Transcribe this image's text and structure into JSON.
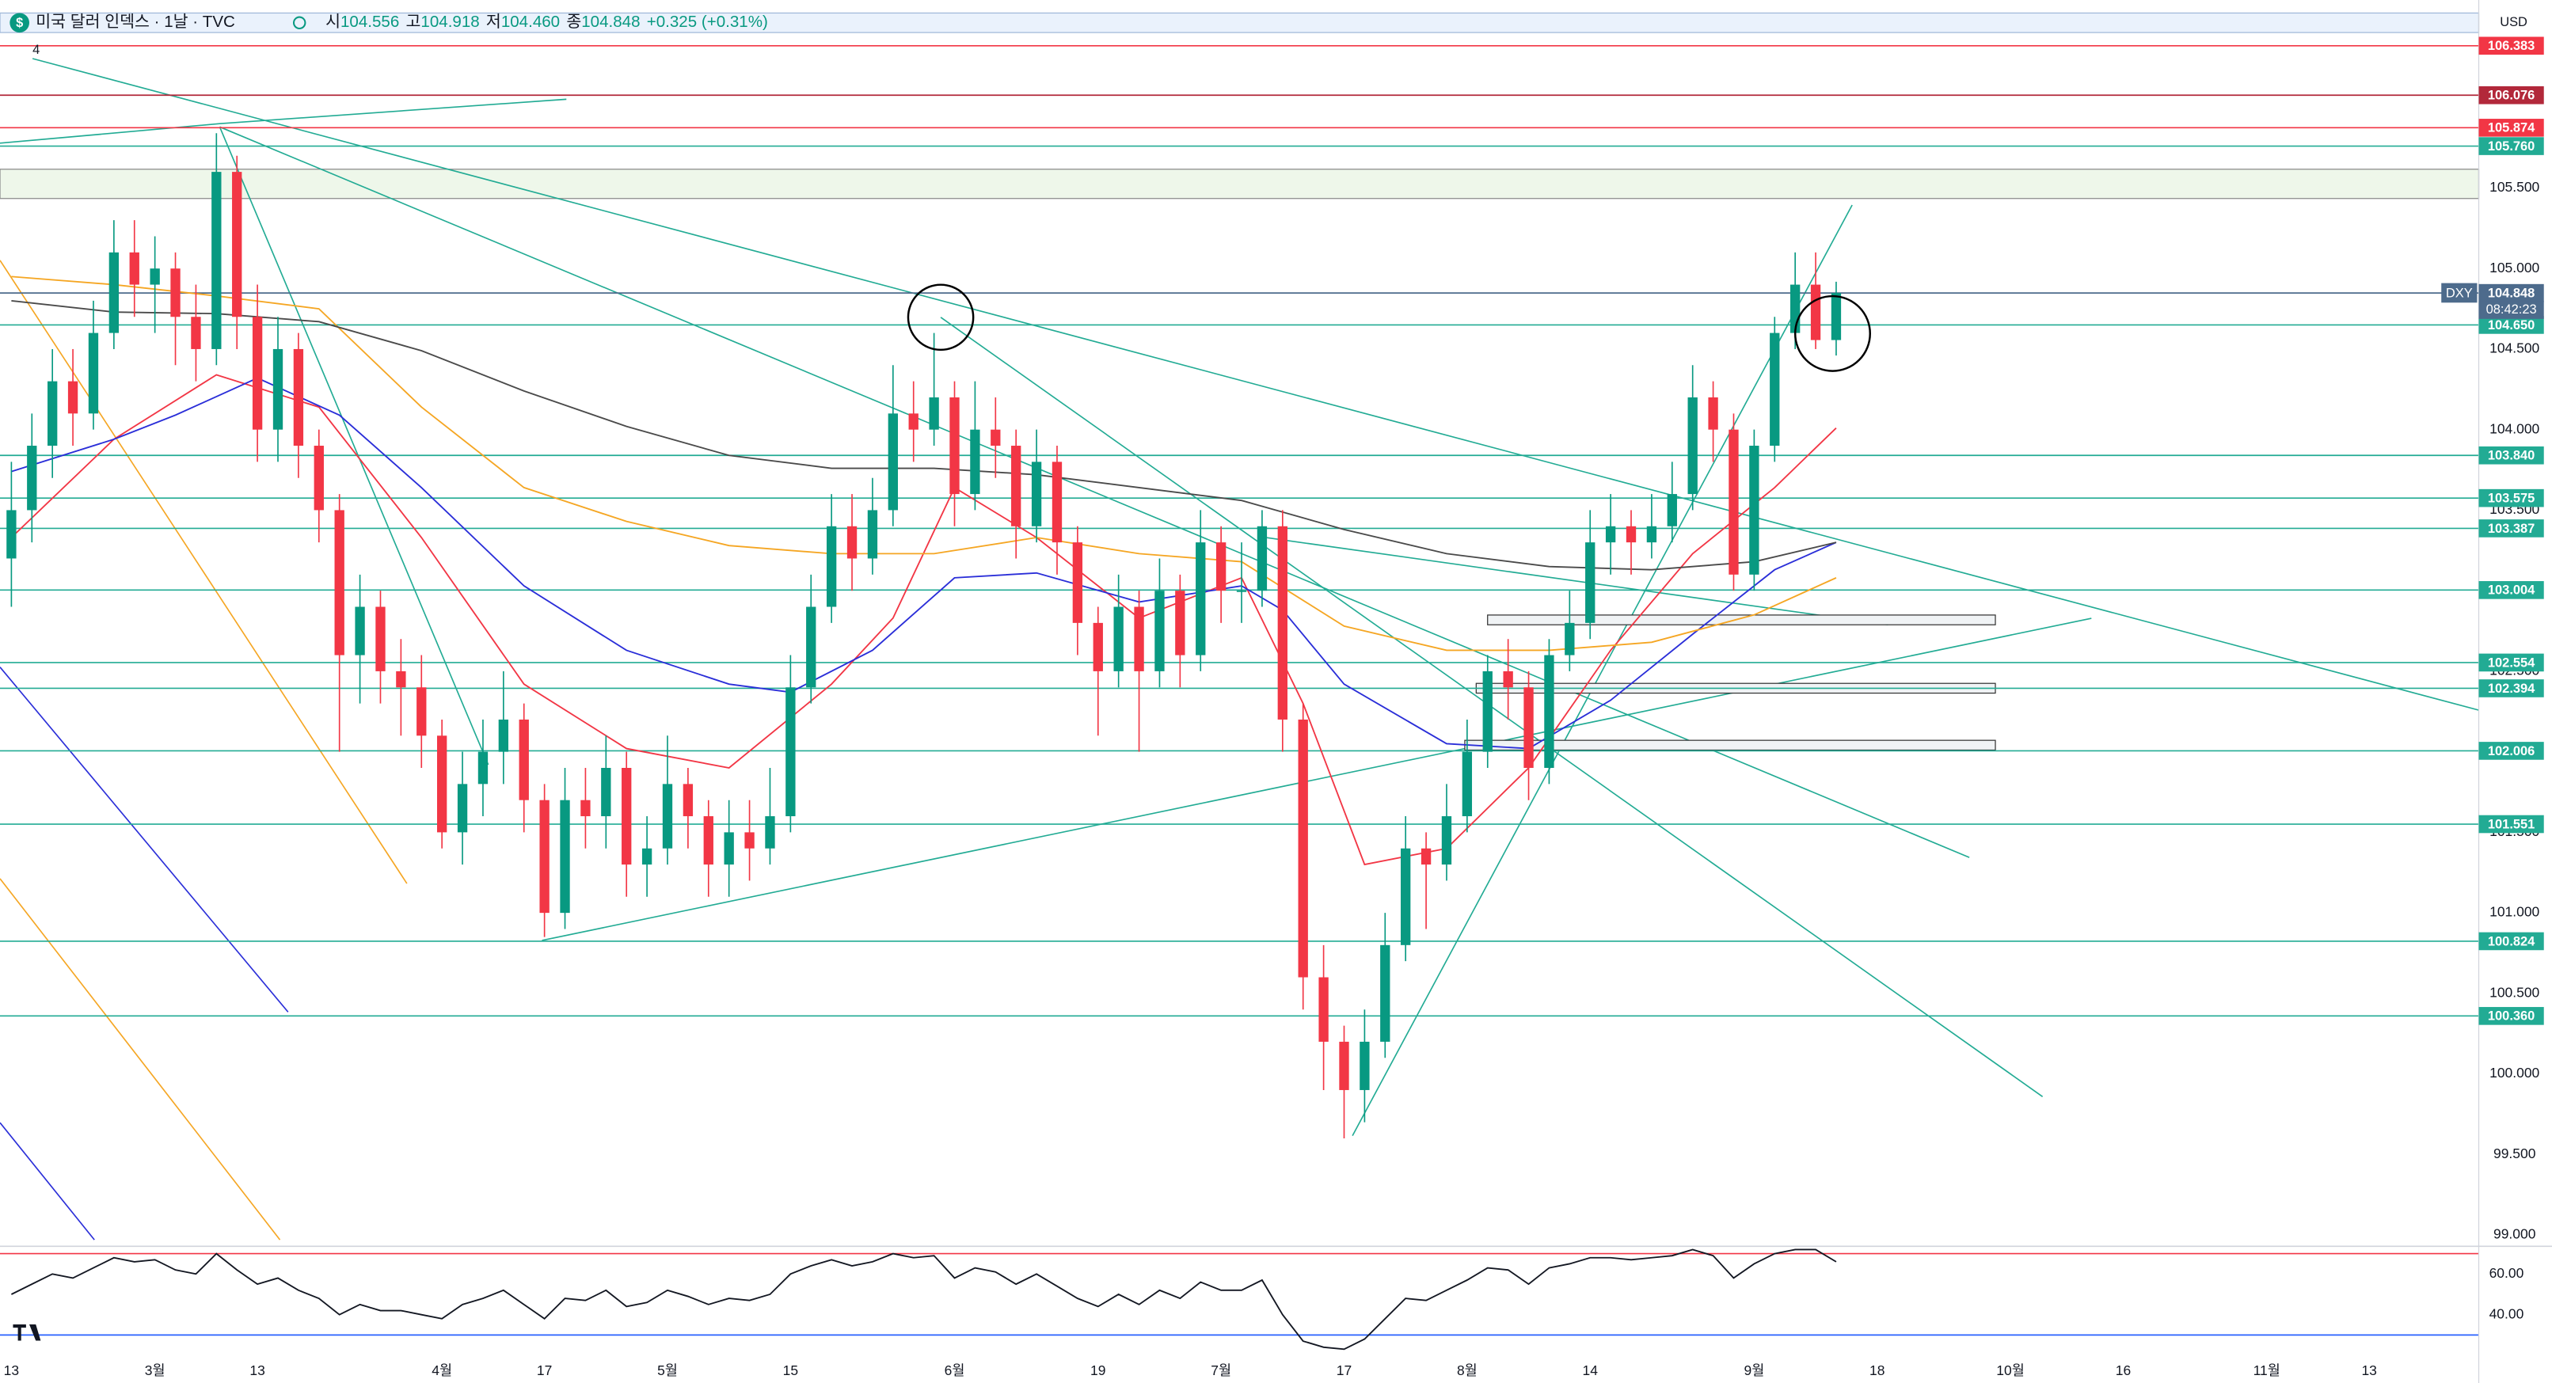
{
  "header": {
    "title": "미국 달러 인덱스 · 1날 · TVC",
    "ohlc": [
      {
        "label": "시",
        "value": "104.556"
      },
      {
        "label": "고",
        "value": "104.918"
      },
      {
        "label": "저",
        "value": "104.460"
      },
      {
        "label": "종",
        "value": "104.848"
      }
    ],
    "change": "+0.325 (+0.31%)",
    "indicator_count": "4",
    "currency": "USD",
    "symbol": "DXY",
    "countdown": "08:42:23"
  },
  "chart_data": [
    {
      "type": "candlestick",
      "up_color": "#089981",
      "down_color": "#f23645",
      "candles": [
        [
          103.2,
          103.8,
          102.9,
          103.5
        ],
        [
          103.5,
          104.1,
          103.3,
          103.9
        ],
        [
          103.9,
          104.5,
          103.7,
          104.3
        ],
        [
          104.3,
          104.5,
          103.9,
          104.1
        ],
        [
          104.1,
          104.8,
          104.0,
          104.6
        ],
        [
          104.6,
          105.3,
          104.5,
          105.1
        ],
        [
          105.1,
          105.3,
          104.7,
          104.9
        ],
        [
          104.9,
          105.2,
          104.6,
          105.0
        ],
        [
          105.0,
          105.1,
          104.4,
          104.7
        ],
        [
          104.7,
          104.9,
          104.3,
          104.5
        ],
        [
          104.5,
          105.84,
          104.4,
          105.6
        ],
        [
          105.6,
          105.7,
          104.5,
          104.7
        ],
        [
          104.7,
          104.9,
          103.8,
          104.0
        ],
        [
          104.0,
          104.7,
          103.8,
          104.5
        ],
        [
          104.5,
          104.6,
          103.7,
          103.9
        ],
        [
          103.9,
          104.0,
          103.3,
          103.5
        ],
        [
          103.5,
          103.6,
          102.0,
          102.6
        ],
        [
          102.6,
          103.1,
          102.3,
          102.9
        ],
        [
          102.9,
          103.0,
          102.3,
          102.5
        ],
        [
          102.5,
          102.7,
          102.1,
          102.4
        ],
        [
          102.4,
          102.6,
          101.9,
          102.1
        ],
        [
          102.1,
          102.2,
          101.4,
          101.5
        ],
        [
          101.5,
          102.0,
          101.3,
          101.8
        ],
        [
          101.8,
          102.2,
          101.6,
          102.0
        ],
        [
          102.0,
          102.5,
          101.8,
          102.2
        ],
        [
          102.2,
          102.3,
          101.5,
          101.7
        ],
        [
          101.7,
          101.8,
          100.85,
          101.0
        ],
        [
          101.0,
          101.9,
          100.9,
          101.7
        ],
        [
          101.7,
          101.9,
          101.4,
          101.6
        ],
        [
          101.6,
          102.1,
          101.4,
          101.9
        ],
        [
          101.9,
          102.0,
          101.1,
          101.3
        ],
        [
          101.3,
          101.6,
          101.1,
          101.4
        ],
        [
          101.4,
          102.1,
          101.3,
          101.8
        ],
        [
          101.8,
          101.9,
          101.4,
          101.6
        ],
        [
          101.6,
          101.7,
          101.1,
          101.3
        ],
        [
          101.3,
          101.7,
          101.1,
          101.5
        ],
        [
          101.5,
          101.7,
          101.2,
          101.4
        ],
        [
          101.4,
          101.9,
          101.3,
          101.6
        ],
        [
          101.6,
          102.6,
          101.5,
          102.4
        ],
        [
          102.4,
          103.1,
          102.3,
          102.9
        ],
        [
          102.9,
          103.6,
          102.8,
          103.4
        ],
        [
          103.4,
          103.6,
          103.0,
          103.2
        ],
        [
          103.2,
          103.7,
          103.1,
          103.5
        ],
        [
          103.5,
          104.4,
          103.4,
          104.1
        ],
        [
          104.1,
          104.3,
          103.8,
          104.0
        ],
        [
          104.0,
          104.6,
          103.9,
          104.2
        ],
        [
          104.2,
          104.3,
          103.4,
          103.6
        ],
        [
          103.6,
          104.3,
          103.5,
          104.0
        ],
        [
          104.0,
          104.2,
          103.7,
          103.9
        ],
        [
          103.9,
          104.0,
          103.2,
          103.4
        ],
        [
          103.4,
          104.0,
          103.3,
          103.8
        ],
        [
          103.8,
          103.9,
          103.1,
          103.3
        ],
        [
          103.3,
          103.4,
          102.6,
          102.8
        ],
        [
          102.8,
          102.9,
          102.1,
          102.5
        ],
        [
          102.5,
          103.1,
          102.4,
          102.9
        ],
        [
          102.9,
          103.0,
          102.0,
          102.5
        ],
        [
          102.5,
          103.2,
          102.4,
          103.0
        ],
        [
          103.0,
          103.1,
          102.4,
          102.6
        ],
        [
          102.6,
          103.5,
          102.5,
          103.3
        ],
        [
          103.3,
          103.4,
          102.8,
          103.0
        ],
        [
          103.0,
          103.3,
          102.8,
          103.0
        ],
        [
          103.0,
          103.5,
          102.9,
          103.4
        ],
        [
          103.4,
          103.5,
          102.0,
          102.2
        ],
        [
          102.2,
          102.3,
          100.4,
          100.6
        ],
        [
          100.6,
          100.8,
          99.9,
          100.2
        ],
        [
          100.2,
          100.3,
          99.6,
          99.9
        ],
        [
          99.9,
          100.4,
          99.7,
          100.2
        ],
        [
          100.2,
          101.0,
          100.1,
          100.8
        ],
        [
          100.8,
          101.6,
          100.7,
          101.4
        ],
        [
          101.4,
          101.5,
          100.9,
          101.3
        ],
        [
          101.3,
          101.8,
          101.2,
          101.6
        ],
        [
          101.6,
          102.2,
          101.5,
          102.0
        ],
        [
          102.0,
          102.6,
          101.9,
          102.5
        ],
        [
          102.5,
          102.7,
          102.2,
          102.4
        ],
        [
          102.4,
          102.5,
          101.7,
          101.9
        ],
        [
          101.9,
          102.7,
          101.8,
          102.6
        ],
        [
          102.6,
          103.0,
          102.5,
          102.8
        ],
        [
          102.8,
          103.5,
          102.7,
          103.3
        ],
        [
          103.3,
          103.6,
          103.1,
          103.4
        ],
        [
          103.4,
          103.5,
          103.1,
          103.3
        ],
        [
          103.3,
          103.6,
          103.2,
          103.4
        ],
        [
          103.4,
          103.8,
          103.3,
          103.6
        ],
        [
          103.6,
          104.4,
          103.5,
          104.2
        ],
        [
          104.2,
          104.3,
          103.8,
          104.0
        ],
        [
          104.0,
          104.1,
          103.0,
          103.1
        ],
        [
          103.1,
          104.0,
          103.0,
          103.9
        ],
        [
          103.9,
          104.7,
          103.8,
          104.6
        ],
        [
          104.6,
          105.1,
          104.5,
          104.9
        ],
        [
          104.9,
          105.1,
          104.5,
          104.556
        ],
        [
          104.556,
          104.918,
          104.46,
          104.848
        ]
      ],
      "series": [
        {
          "color": "#f23645",
          "x": [
            0,
            5,
            10,
            15,
            20,
            25,
            30,
            35,
            40,
            43,
            46,
            50,
            55,
            60,
            63,
            66,
            70,
            74,
            78,
            82,
            86,
            89
          ],
          "values": [
            103.33,
            103.94,
            104.34,
            104.14,
            103.33,
            102.42,
            102.02,
            101.9,
            102.42,
            102.83,
            103.64,
            103.33,
            102.83,
            103.08,
            102.3,
            101.3,
            101.4,
            101.9,
            102.63,
            103.23,
            103.64,
            104.01
          ]
        },
        {
          "color": "#2a2ed8",
          "x": [
            0,
            5,
            8,
            12,
            16,
            20,
            25,
            30,
            35,
            38,
            42,
            46,
            50,
            55,
            60,
            62,
            65,
            70,
            74,
            78,
            82,
            86,
            89
          ],
          "values": [
            103.74,
            103.94,
            104.09,
            104.32,
            104.09,
            103.64,
            103.03,
            102.63,
            102.42,
            102.37,
            102.63,
            103.08,
            103.11,
            102.93,
            103.03,
            102.88,
            102.42,
            102.05,
            102.02,
            102.32,
            102.73,
            103.13,
            103.3
          ]
        },
        {
          "color": "#f5a623",
          "x": [
            0,
            5,
            10,
            15,
            20,
            25,
            30,
            35,
            40,
            45,
            50,
            55,
            60,
            65,
            70,
            75,
            80,
            85,
            89
          ],
          "values": [
            104.95,
            104.9,
            104.83,
            104.75,
            104.14,
            103.64,
            103.43,
            103.28,
            103.23,
            103.23,
            103.33,
            103.23,
            103.18,
            102.78,
            102.63,
            102.63,
            102.68,
            102.85,
            103.08
          ]
        },
        {
          "color": "#4a4a4a",
          "x": [
            0,
            5,
            10,
            15,
            20,
            25,
            30,
            35,
            40,
            45,
            50,
            55,
            60,
            65,
            70,
            75,
            80,
            85,
            89
          ],
          "values": [
            104.8,
            104.73,
            104.72,
            104.67,
            104.49,
            104.24,
            104.02,
            103.84,
            103.76,
            103.76,
            103.72,
            103.64,
            103.56,
            103.38,
            103.23,
            103.15,
            103.13,
            103.18,
            103.3
          ]
        }
      ],
      "levels": [
        {
          "value": 106.383,
          "color": "#f23645"
        },
        {
          "value": 106.076,
          "color": "#b2283a"
        },
        {
          "value": 105.874,
          "color": "#f23645"
        },
        {
          "value": 105.76,
          "label": "105.760",
          "color": "#22ab94"
        },
        {
          "value": 104.848,
          "color": "#4d6b8c"
        },
        {
          "value": 104.65,
          "label": "104.650",
          "color": "#22ab94"
        },
        {
          "value": 103.84,
          "label": "103.840",
          "color": "#22ab94"
        },
        {
          "value": 103.575,
          "color": "#22ab94"
        },
        {
          "value": 103.387,
          "color": "#22ab94"
        },
        {
          "value": 103.004,
          "color": "#22ab94"
        },
        {
          "value": 102.554,
          "color": "#22ab94"
        },
        {
          "value": 102.394,
          "color": "#22ab94"
        },
        {
          "value": 102.006,
          "color": "#22ab94"
        },
        {
          "value": 101.551,
          "color": "#22ab94"
        },
        {
          "value": 100.824,
          "color": "#22ab94"
        },
        {
          "value": 100.36,
          "label": "100.360",
          "color": "#22ab94"
        }
      ],
      "xlim": [
        0,
        120.5
      ],
      "xticks": [
        {
          "value": 0,
          "label": "13"
        },
        {
          "value": 7,
          "label": "3월"
        },
        {
          "value": 12,
          "label": "13"
        },
        {
          "value": 21,
          "label": "4월"
        },
        {
          "value": 26,
          "label": "17"
        },
        {
          "value": 32,
          "label": "5월"
        },
        {
          "value": 38,
          "label": "15"
        },
        {
          "value": 46,
          "label": "6월"
        },
        {
          "value": 53,
          "label": "19"
        },
        {
          "value": 59,
          "label": "7월"
        },
        {
          "value": 65,
          "label": "17"
        },
        {
          "value": 71,
          "label": "8월"
        },
        {
          "value": 77,
          "label": "14"
        },
        {
          "value": 85,
          "label": "9월"
        },
        {
          "value": 91,
          "label": "18"
        },
        {
          "value": 97.5,
          "label": "10월"
        },
        {
          "value": 103,
          "label": "16"
        },
        {
          "value": 110,
          "label": "11월"
        },
        {
          "value": 115,
          "label": "13"
        }
      ],
      "ylim": [
        98.94,
        106.667
      ],
      "yticks": [
        {
          "value": 99,
          "label": "99.000"
        },
        {
          "value": 99.5,
          "label": "99.500"
        },
        {
          "value": 100,
          "label": "100.000"
        },
        {
          "value": 100.5,
          "label": "100.500"
        },
        {
          "value": 101,
          "label": "101.000"
        },
        {
          "value": 101.5,
          "label": "101.500"
        },
        {
          "value": 102,
          "label": "102.000"
        },
        {
          "value": 102.5,
          "label": "102.500"
        },
        {
          "value": 103,
          "label": "103.000"
        },
        {
          "value": 103.5,
          "label": "103.500"
        },
        {
          "value": 104,
          "label": "104.000"
        },
        {
          "value": 104.5,
          "label": "104.500"
        },
        {
          "value": 105,
          "label": "105.000"
        },
        {
          "value": 105.5,
          "label": "105.500"
        }
      ]
    },
    {
      "type": "line",
      "color": "#131722",
      "values": [
        50,
        55,
        60,
        58,
        63,
        68,
        66,
        67,
        62,
        60,
        70,
        62,
        55,
        58,
        52,
        48,
        40,
        45,
        42,
        42,
        40,
        38,
        45,
        48,
        52,
        45,
        38,
        48,
        47,
        52,
        44,
        46,
        52,
        49,
        45,
        48,
        47,
        50,
        60,
        64,
        67,
        64,
        66,
        70,
        68,
        69,
        58,
        63,
        61,
        55,
        60,
        54,
        48,
        44,
        50,
        45,
        52,
        48,
        56,
        52,
        52,
        57,
        40,
        27,
        24,
        23,
        28,
        38,
        48,
        47,
        52,
        57,
        63,
        62,
        55,
        63,
        65,
        68,
        68,
        67,
        68,
        69,
        72,
        69,
        58,
        65,
        70,
        72,
        72,
        66
      ],
      "ref_lines": [
        {
          "value": 70,
          "color": "#f23645"
        },
        {
          "value": 30,
          "color": "#2962ff"
        }
      ],
      "ylim": [
        22.4,
        72.8
      ],
      "yticks": [
        {
          "value": 60,
          "label": "60.00"
        },
        {
          "value": 40,
          "label": "40.00"
        }
      ]
    }
  ]
}
